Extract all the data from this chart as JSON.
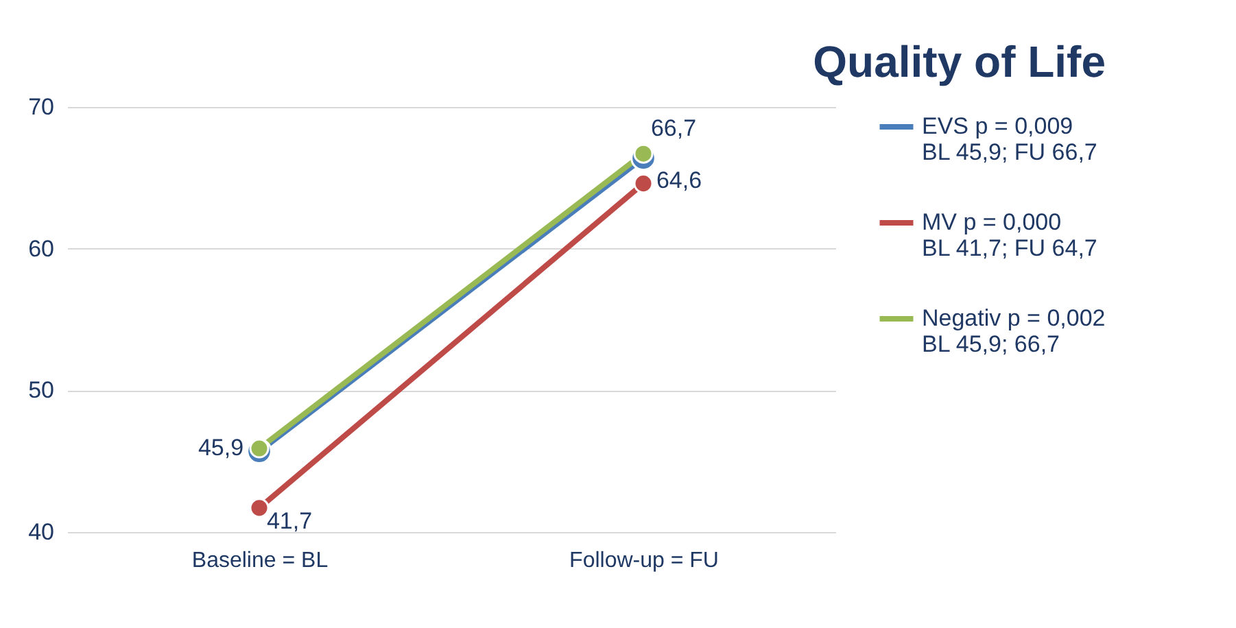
{
  "chart_data": {
    "type": "line",
    "title": "Quality of Life",
    "categories": [
      "Baseline = BL",
      "Follow-up = FU"
    ],
    "series": [
      {
        "name": "EVS p = 0,009\nBL 45,9; FU 66,7",
        "color": "#4a7ebb",
        "values": [
          45.7,
          66.4
        ]
      },
      {
        "name": "MV p = 0,000\nBL 41,7; FU 64,7",
        "color": "#be4b48",
        "values": [
          41.7,
          64.6
        ],
        "value_labels": [
          "41,7",
          "64,6"
        ]
      },
      {
        "name": "Negativ p = 0,002\nBL 45,9; 66,7",
        "color": "#98b954",
        "values": [
          45.9,
          66.7
        ],
        "value_labels": [
          "45,9",
          "66,7"
        ]
      }
    ],
    "ylim": [
      40,
      70
    ],
    "yticks": [
      40,
      50,
      60,
      70
    ],
    "grid": "y",
    "legend": "right",
    "marker": "circle",
    "line_style": "solid"
  }
}
